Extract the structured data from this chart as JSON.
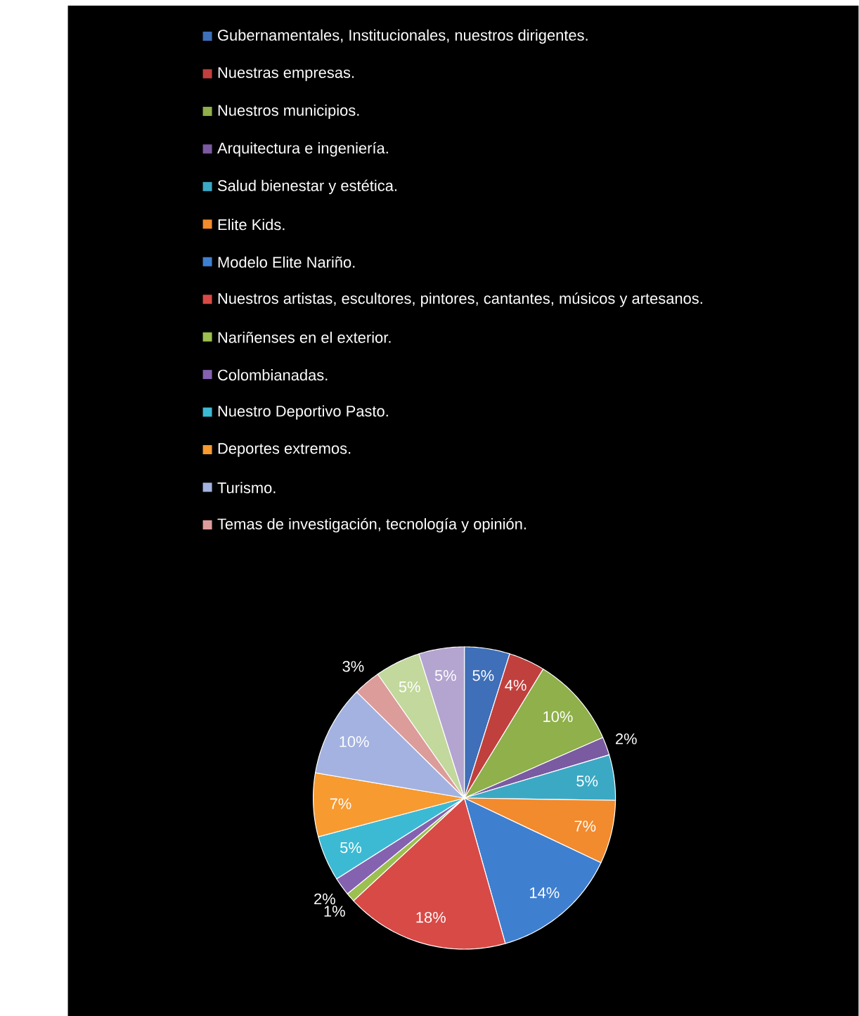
{
  "chart_data": {
    "type": "pie",
    "legend": "top",
    "categories": [
      "Gubernamentales, Institucionales,  nuestros dirigentes.",
      "Nuestras empresas.",
      "Nuestros municipios.",
      "Arquitectura e ingeniería.",
      "Salud bienestar y estética.",
      "Elite Kids.",
      "Modelo Elite  Nariño.",
      "Nuestros artistas,  escultores, pintores, cantantes,  músicos y artesanos.",
      "Nariñenses en el exterior.",
      "Colombianadas.",
      "Nuestro Deportivo Pasto.",
      "Deportes extremos.",
      "Turismo.",
      "Temas de investigación, tecnología y opinión.",
      null,
      null
    ],
    "values": [
      5,
      4,
      10,
      2,
      5,
      7,
      14,
      18,
      1,
      2,
      5,
      7,
      10,
      3,
      5,
      5
    ],
    "value_labels": [
      "5%",
      "4%",
      "10%",
      "2%",
      "5%",
      "7%",
      "14%",
      "18%",
      "1%",
      "2%",
      "5%",
      "7%",
      "10%",
      "3%",
      "5%",
      "5%"
    ],
    "colors": [
      "#3e6fb8",
      "#c0403d",
      "#8fb04a",
      "#7a5aa0",
      "#3ba9c4",
      "#f28a2e",
      "#3f7fd0",
      "#d84a46",
      "#9cc04f",
      "#8462b0",
      "#3cbad4",
      "#f79a30",
      "#a3b2e0",
      "#dc9c9a",
      "#c2d89c",
      "#b4a4d0"
    ]
  }
}
